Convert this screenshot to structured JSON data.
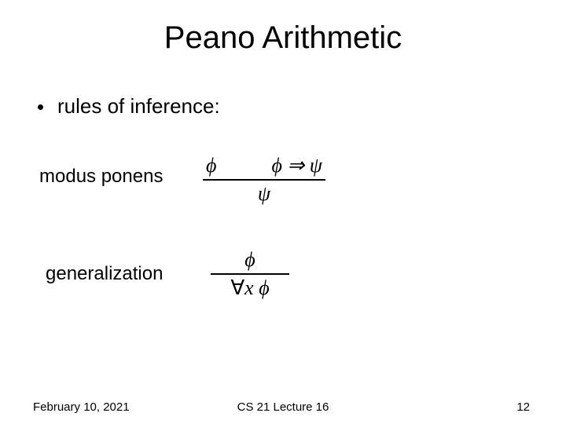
{
  "title": "Peano Arithmetic",
  "bullet": "rules of inference:",
  "rules": {
    "modus_ponens": {
      "label": "modus ponens",
      "premise_left": "ϕ",
      "premise_right": "ϕ ⇒ ψ",
      "conclusion": "ψ"
    },
    "generalization": {
      "label": "generalization",
      "premise": "ϕ",
      "conclusion": "∀x ϕ"
    }
  },
  "footer": {
    "date": "February 10, 2021",
    "course": "CS 21 Lecture 16",
    "page": "12"
  },
  "colors": {
    "background": "#ffffff",
    "text": "#000000"
  },
  "fonts": {
    "title_size_pt": 40,
    "body_size_pt": 26,
    "label_size_pt": 24,
    "math_size_pt": 26,
    "footer_size_pt": 15
  }
}
